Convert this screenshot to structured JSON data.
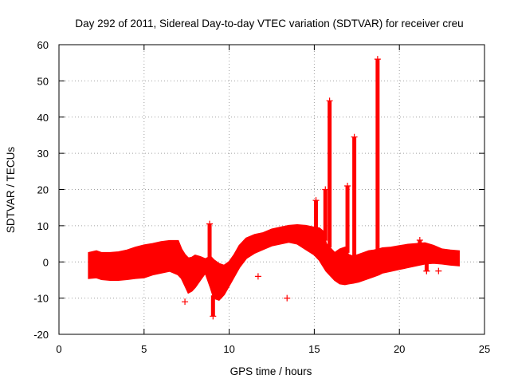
{
  "chart_data": {
    "type": "scatter",
    "title": "Day 292 of 2011, Sidereal Day-to-day VTEC variation (SDTVAR) for receiver creu",
    "xlabel": "GPS time / hours",
    "ylabel": "SDTVAR / TECUs",
    "xlim": [
      0,
      25
    ],
    "ylim": [
      -20,
      60
    ],
    "xticks": [
      0,
      5,
      10,
      15,
      20,
      25
    ],
    "yticks": [
      -20,
      -10,
      0,
      10,
      20,
      30,
      40,
      50,
      60
    ],
    "grid": true,
    "marker": "+",
    "series": [
      {
        "name": "SDTVAR",
        "color": "#ff0000",
        "envelope": {
          "x": [
            1.75,
            2.2,
            2.5,
            3.0,
            3.5,
            4.0,
            4.5,
            5.0,
            5.5,
            6.0,
            6.5,
            7.0,
            7.2,
            7.4,
            7.6,
            7.8,
            8.0,
            8.3,
            8.6,
            8.9,
            9.1,
            9.4,
            9.7,
            10.0,
            10.3,
            10.6,
            11.0,
            11.5,
            12.0,
            12.5,
            13.0,
            13.5,
            14.0,
            14.5,
            15.0,
            15.3,
            15.5,
            15.7,
            15.9,
            16.2,
            16.5,
            16.8,
            17.0,
            17.3,
            17.6,
            17.9,
            18.2,
            18.5,
            18.8,
            19.0,
            19.5,
            20.0,
            20.5,
            21.0,
            21.5,
            22.0,
            22.5,
            23.0,
            23.5
          ],
          "upper": [
            2.5,
            3.0,
            2.5,
            2.5,
            2.7,
            3.2,
            4.0,
            4.6,
            5.0,
            5.5,
            5.8,
            5.8,
            3.5,
            2.0,
            1.0,
            1.2,
            1.8,
            1.4,
            0.8,
            1.5,
            0.5,
            -0.5,
            -1.0,
            0.0,
            2.0,
            4.5,
            6.5,
            7.5,
            8.0,
            9.0,
            9.5,
            10.0,
            10.2,
            10.0,
            9.5,
            9.3,
            8.5,
            5.0,
            4.0,
            2.5,
            3.5,
            4.0,
            2.0,
            1.5,
            2.0,
            2.5,
            3.0,
            3.2,
            3.5,
            3.8,
            4.0,
            4.4,
            4.8,
            5.0,
            5.2,
            4.5,
            3.5,
            3.2,
            3.0
          ],
          "lower": [
            -4.5,
            -4.3,
            -4.8,
            -5.0,
            -5.0,
            -4.8,
            -4.5,
            -4.3,
            -3.5,
            -3.0,
            -2.5,
            -3.5,
            -4.5,
            -6.5,
            -8.5,
            -8.0,
            -7.0,
            -5.0,
            -3.0,
            -7.0,
            -10.0,
            -10.5,
            -9.0,
            -6.5,
            -4.0,
            -1.5,
            1.0,
            2.5,
            3.5,
            4.5,
            5.0,
            5.5,
            5.0,
            3.5,
            2.0,
            0.5,
            -1.0,
            -2.5,
            -3.5,
            -5.0,
            -6.0,
            -6.2,
            -6.0,
            -5.8,
            -5.5,
            -5.0,
            -4.5,
            -4.0,
            -3.5,
            -3.0,
            -2.5,
            -2.0,
            -1.5,
            -1.0,
            -0.5,
            -0.3,
            -0.5,
            -0.8,
            -1.0
          ]
        },
        "spikes": [
          {
            "x": 8.85,
            "peak": 10.5
          },
          {
            "x": 9.05,
            "peak": -15.0
          },
          {
            "x": 15.1,
            "peak": 17.0
          },
          {
            "x": 15.65,
            "peak": 20.0
          },
          {
            "x": 15.9,
            "peak": 44.5
          },
          {
            "x": 16.95,
            "peak": 21.0
          },
          {
            "x": 17.35,
            "peak": 34.5
          },
          {
            "x": 18.72,
            "peak": 56.0
          },
          {
            "x": 21.2,
            "peak": 6.0
          },
          {
            "x": 21.6,
            "peak": -2.5
          }
        ],
        "outliers": [
          {
            "x": 13.4,
            "y": -10.0
          },
          {
            "x": 11.7,
            "y": -4.0
          },
          {
            "x": 7.4,
            "y": -11.0
          },
          {
            "x": 21.6,
            "y": -2.5
          },
          {
            "x": 22.3,
            "y": -2.5
          }
        ]
      }
    ]
  }
}
